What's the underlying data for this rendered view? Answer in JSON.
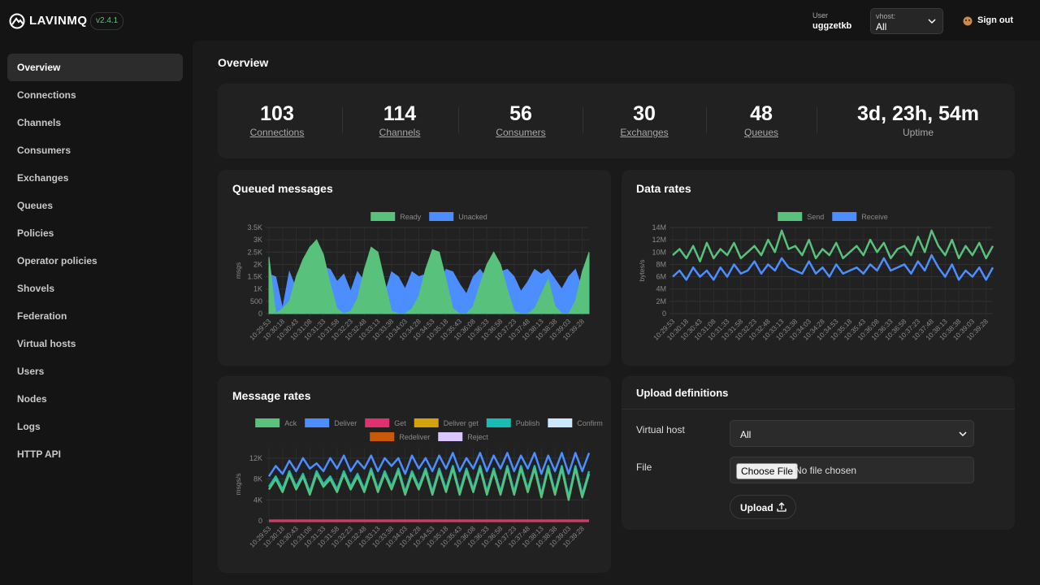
{
  "header": {
    "brand": "LAVINMQ",
    "version": "v2.4.1",
    "user_label": "User",
    "user": "uggzetkb",
    "vhost_label": "vhost:",
    "vhost": "All",
    "signout": "Sign out"
  },
  "nav": [
    "Overview",
    "Connections",
    "Channels",
    "Consumers",
    "Exchanges",
    "Queues",
    "Policies",
    "Operator policies",
    "Shovels",
    "Federation",
    "Virtual hosts",
    "Users",
    "Nodes",
    "Logs",
    "HTTP API"
  ],
  "page_title": "Overview",
  "stats": [
    {
      "value": 103,
      "label": "Connections"
    },
    {
      "value": 114,
      "label": "Channels"
    },
    {
      "value": 56,
      "label": "Consumers"
    },
    {
      "value": 30,
      "label": "Exchanges"
    },
    {
      "value": 48,
      "label": "Queues"
    },
    {
      "value": "3d, 23h, 54m",
      "label": "Uptime"
    }
  ],
  "upload": {
    "title": "Upload definitions",
    "vhost_label": "Virtual host",
    "vhost": "All",
    "file_label": "File",
    "choose": "Choose File",
    "no_file": "No file chosen",
    "button": "Upload"
  },
  "chart_data": [
    {
      "type": "area",
      "title": "Queued messages",
      "ylabel": "msgs",
      "grid": true,
      "categories": [
        "10:29:53",
        null,
        "10:30:18",
        null,
        "10:30:43",
        null,
        "10:31:08",
        null,
        "10:31:33",
        null,
        "10:31:58",
        null,
        "10:32:23",
        null,
        "10:32:48",
        null,
        "10:33:13",
        null,
        "10:33:38",
        null,
        "10:34:03",
        null,
        "10:34:28",
        null,
        "10:34:53",
        null,
        "10:35:18",
        null,
        "10:35:43",
        null,
        "10:36:08",
        null,
        "10:36:33",
        null,
        "10:36:58",
        null,
        "10:37:23",
        null,
        "10:37:48",
        null,
        "10:38:13",
        null,
        "10:38:38",
        null,
        "10:39:03",
        null,
        "10:39:28",
        null
      ],
      "ylim": [
        0,
        3500
      ],
      "yticks": [
        0,
        500,
        {
          "value": 1000,
          "label": "1K"
        },
        {
          "value": 1500,
          "label": "1.5K"
        },
        {
          "value": 2000,
          "label": "2K"
        },
        {
          "value": 2500,
          "label": "2.5K"
        },
        {
          "value": 3000,
          "label": "3K"
        },
        {
          "value": 3500,
          "label": "3.5K"
        }
      ],
      "series": [
        {
          "name": "Ready",
          "color": "#58c17b",
          "values": [
            2300,
            0,
            200,
            500,
            1500,
            2200,
            2700,
            3000,
            2400,
            1200,
            200,
            0,
            100,
            600,
            1800,
            2700,
            2500,
            1300,
            100,
            0,
            0,
            200,
            700,
            1800,
            2600,
            2500,
            1400,
            200,
            0,
            0,
            300,
            1200,
            2000,
            2500,
            2000,
            1000,
            100,
            0,
            0,
            200,
            800,
            1400,
            300,
            0,
            0,
            500,
            1700,
            2500
          ]
        },
        {
          "name": "Unacked",
          "color": "#4c8dff",
          "values": [
            1600,
            1500,
            200,
            1700,
            1000,
            1900,
            2200,
            1500,
            1900,
            1800,
            1300,
            1600,
            900,
            1700,
            1300,
            1700,
            900,
            800,
            1700,
            1500,
            1000,
            1700,
            1500,
            1600,
            900,
            1200,
            1800,
            1700,
            1200,
            800,
            1500,
            1800,
            1400,
            1200,
            1700,
            1800,
            1500,
            900,
            1300,
            1800,
            1600,
            1800,
            1400,
            1000,
            1500,
            1800,
            1000,
            900
          ]
        }
      ]
    },
    {
      "type": "line",
      "title": "Data rates",
      "ylabel": "bytes/s",
      "grid": true,
      "categories": [
        "10:29:53",
        null,
        "10:30:18",
        null,
        "10:30:43",
        null,
        "10:31:08",
        null,
        "10:31:33",
        null,
        "10:31:58",
        null,
        "10:32:23",
        null,
        "10:32:48",
        null,
        "10:33:13",
        null,
        "10:33:38",
        null,
        "10:34:03",
        null,
        "10:34:28",
        null,
        "10:34:53",
        null,
        "10:35:18",
        null,
        "10:35:43",
        null,
        "10:36:08",
        null,
        "10:36:33",
        null,
        "10:36:58",
        null,
        "10:37:23",
        null,
        "10:37:48",
        null,
        "10:38:13",
        null,
        "10:38:38",
        null,
        "10:39:03",
        null,
        "10:39:28",
        null
      ],
      "ylim": [
        0,
        14000000
      ],
      "yticks": [
        0,
        {
          "value": 2000000,
          "label": "2M"
        },
        {
          "value": 4000000,
          "label": "4M"
        },
        {
          "value": 6000000,
          "label": "6M"
        },
        {
          "value": 8000000,
          "label": "8M"
        },
        {
          "value": 10000000,
          "label": "10M"
        },
        {
          "value": 12000000,
          "label": "12M"
        },
        {
          "value": 14000000,
          "label": "14M"
        }
      ],
      "series": [
        {
          "name": "Send",
          "color": "#58c17b",
          "values": [
            9500000,
            10500000,
            9000000,
            11000000,
            8500000,
            11500000,
            9000000,
            10500000,
            9500000,
            11500000,
            9000000,
            10000000,
            11000000,
            9500000,
            12000000,
            10000000,
            13500000,
            10500000,
            11000000,
            9500000,
            12000000,
            9000000,
            10500000,
            9500000,
            11500000,
            9000000,
            10000000,
            11000000,
            9500000,
            12000000,
            10000000,
            11500000,
            9000000,
            10500000,
            11000000,
            9500000,
            12500000,
            10000000,
            13500000,
            11000000,
            9500000,
            12000000,
            9000000,
            11000000,
            9500000,
            11500000,
            9000000,
            11000000
          ]
        },
        {
          "name": "Receive",
          "color": "#4c8dff",
          "values": [
            6000000,
            7000000,
            5500000,
            7500000,
            6000000,
            7000000,
            5500000,
            7500000,
            6000000,
            8000000,
            6500000,
            7000000,
            8500000,
            6500000,
            8000000,
            7000000,
            9000000,
            7500000,
            7000000,
            6500000,
            8500000,
            6500000,
            7500000,
            6000000,
            8000000,
            6500000,
            7000000,
            7500000,
            6500000,
            8000000,
            7000000,
            9000000,
            7000000,
            7500000,
            8000000,
            6500000,
            8500000,
            7000000,
            9500000,
            7500000,
            6000000,
            8000000,
            5500000,
            7000000,
            6000000,
            7500000,
            5500000,
            7500000
          ]
        }
      ]
    },
    {
      "type": "line",
      "title": "Message rates",
      "ylabel": "msgs/s",
      "grid": true,
      "categories": [
        "10:29:53",
        null,
        "10:30:18",
        null,
        "10:30:43",
        null,
        "10:31:08",
        null,
        "10:31:33",
        null,
        "10:31:58",
        null,
        "10:32:23",
        null,
        "10:32:48",
        null,
        "10:33:13",
        null,
        "10:33:38",
        null,
        "10:34:03",
        null,
        "10:34:28",
        null,
        "10:34:53",
        null,
        "10:35:18",
        null,
        "10:35:43",
        null,
        "10:36:08",
        null,
        "10:36:33",
        null,
        "10:36:58",
        null,
        "10:37:23",
        null,
        "10:37:48",
        null,
        "10:38:13",
        null,
        "10:38:38",
        null,
        "10:39:03",
        null,
        "10:39:28",
        null
      ],
      "ylim": [
        0,
        14000
      ],
      "yticks": [
        0,
        {
          "value": 4000,
          "label": "4K"
        },
        {
          "value": 8000,
          "label": "8K"
        },
        {
          "value": 12000,
          "label": "12K"
        }
      ],
      "series": [
        {
          "name": "Ack",
          "color": "#58c17b",
          "values": [
            6000,
            8000,
            5500,
            9000,
            6000,
            8500,
            5000,
            9000,
            6500,
            8000,
            5500,
            9000,
            6000,
            8500,
            5500,
            9500,
            5500,
            9000,
            6000,
            9500,
            5000,
            9000,
            6000,
            9500,
            5000,
            9500,
            5500,
            10000,
            5000,
            9500,
            5500,
            10000,
            5000,
            9500,
            5000,
            10000,
            5000,
            10000,
            5500,
            10000,
            4500,
            10000,
            5000,
            10000,
            4000,
            10000,
            4500,
            9000
          ]
        },
        {
          "name": "Deliver",
          "color": "#4c8dff",
          "values": [
            8500,
            10500,
            9000,
            11500,
            9500,
            12000,
            10000,
            11000,
            9500,
            12000,
            10000,
            12500,
            9500,
            11500,
            10000,
            12500,
            9500,
            12000,
            10500,
            12000,
            9000,
            12500,
            10000,
            12000,
            9500,
            12500,
            10000,
            13000,
            9500,
            12000,
            10000,
            13000,
            9500,
            12500,
            10000,
            13000,
            9500,
            12500,
            10000,
            13000,
            9000,
            12500,
            9500,
            13000,
            9000,
            13000,
            9500,
            13000
          ]
        },
        {
          "name": "Get",
          "color": "#e0306f",
          "values": [
            0,
            0,
            0,
            0,
            0,
            0,
            0,
            0,
            0,
            0,
            0,
            0,
            0,
            0,
            0,
            0,
            0,
            0,
            0,
            0,
            0,
            0,
            0,
            0,
            0,
            0,
            0,
            0,
            0,
            0,
            0,
            0,
            0,
            0,
            0,
            0,
            0,
            0,
            0,
            0,
            0,
            0,
            0,
            0,
            0,
            0,
            0,
            0
          ]
        },
        {
          "name": "Deliver get",
          "color": "#d4a20a",
          "values": [
            0,
            0,
            0,
            0,
            0,
            0,
            0,
            0,
            0,
            0,
            0,
            0,
            0,
            0,
            0,
            0,
            0,
            0,
            0,
            0,
            0,
            0,
            0,
            0,
            0,
            0,
            0,
            0,
            0,
            0,
            0,
            0,
            0,
            0,
            0,
            0,
            0,
            0,
            0,
            0,
            0,
            0,
            0,
            0,
            0,
            0,
            0,
            0
          ]
        },
        {
          "name": "Publish",
          "color": "#17bcb4",
          "values": [
            6500,
            8500,
            6000,
            9500,
            6500,
            9000,
            5500,
            9500,
            7000,
            8500,
            6000,
            9500,
            6500,
            9000,
            6000,
            10000,
            6000,
            9500,
            6500,
            10000,
            5500,
            9500,
            6500,
            10000,
            5500,
            10000,
            6000,
            10500,
            5500,
            10000,
            6000,
            10500,
            5500,
            10000,
            5500,
            10500,
            5500,
            10500,
            6000,
            10500,
            5000,
            10500,
            5500,
            10500,
            4500,
            10500,
            5000,
            9500
          ]
        },
        {
          "name": "Confirm",
          "color": "#c9e8ff",
          "values": [
            0,
            0,
            0,
            0,
            0,
            0,
            0,
            0,
            0,
            0,
            0,
            0,
            0,
            0,
            0,
            0,
            0,
            0,
            0,
            0,
            0,
            0,
            0,
            0,
            0,
            0,
            0,
            0,
            0,
            0,
            0,
            0,
            0,
            0,
            0,
            0,
            0,
            0,
            0,
            0,
            0,
            0,
            0,
            0,
            0,
            0,
            0,
            0
          ]
        },
        {
          "name": "Redeliver",
          "color": "#c8590a",
          "values": [
            0,
            0,
            0,
            0,
            0,
            0,
            0,
            0,
            0,
            0,
            0,
            0,
            0,
            0,
            0,
            0,
            0,
            0,
            0,
            0,
            0,
            0,
            0,
            0,
            0,
            0,
            0,
            0,
            0,
            0,
            0,
            0,
            0,
            0,
            0,
            0,
            0,
            0,
            0,
            0,
            0,
            0,
            0,
            0,
            0,
            0,
            0,
            0
          ]
        },
        {
          "name": "Reject",
          "color": "#d9c6ff",
          "values": [
            0,
            0,
            0,
            0,
            0,
            0,
            0,
            0,
            0,
            0,
            0,
            0,
            0,
            0,
            0,
            0,
            0,
            0,
            0,
            0,
            0,
            0,
            0,
            0,
            0,
            0,
            0,
            0,
            0,
            0,
            0,
            0,
            0,
            0,
            0,
            0,
            0,
            0,
            0,
            0,
            0,
            0,
            0,
            0,
            0,
            0,
            0,
            0
          ]
        }
      ]
    }
  ]
}
